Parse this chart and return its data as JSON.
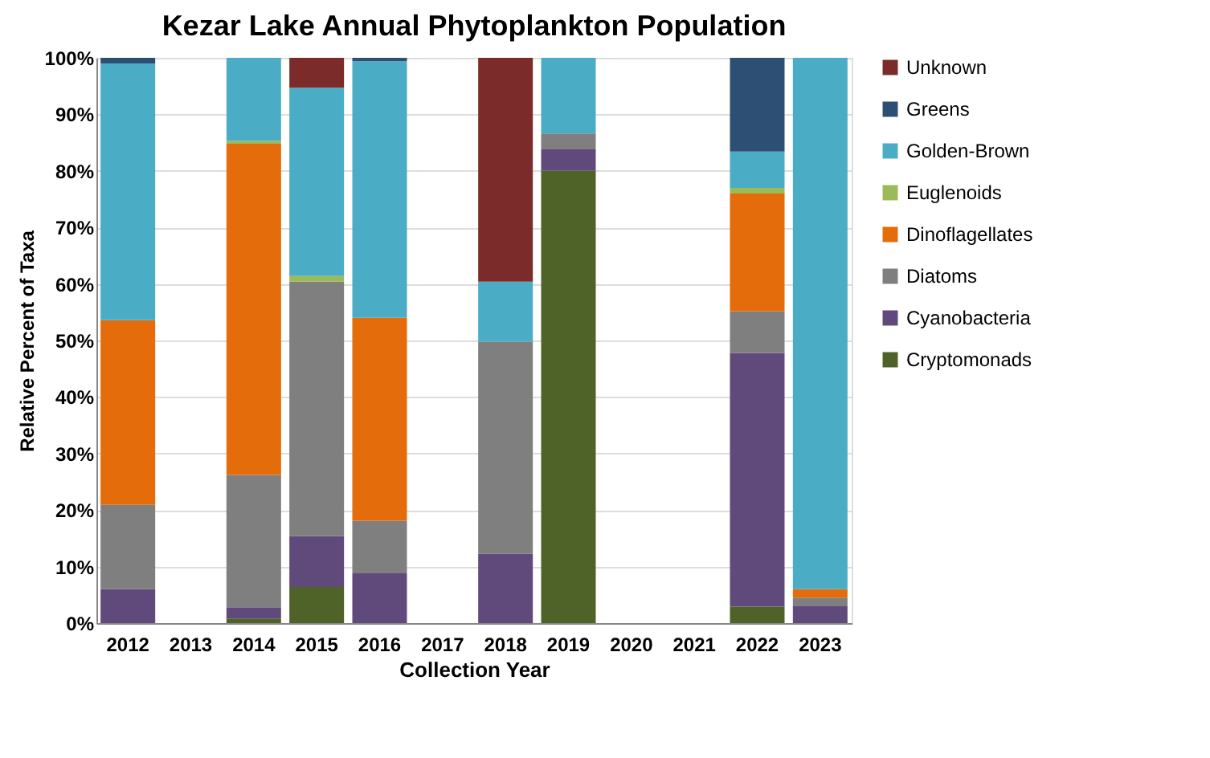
{
  "chart_data": {
    "type": "bar",
    "stacked": true,
    "title": "Kezar Lake Annual Phytoplankton Population",
    "xlabel": "Collection Year",
    "ylabel": "Relative Percent of Taxa",
    "categories": [
      "2012",
      "2013",
      "2014",
      "2015",
      "2016",
      "2017",
      "2018",
      "2019",
      "2020",
      "2021",
      "2022",
      "2023"
    ],
    "series": [
      {
        "name": "Cryptomonads",
        "color": "#4f6228",
        "values": [
          null,
          null,
          0.8,
          6.4,
          null,
          null,
          null,
          80.0,
          null,
          null,
          2.9,
          null
        ]
      },
      {
        "name": "Cyanobacteria",
        "color": "#604a7b",
        "values": [
          6.0,
          null,
          2.0,
          9.0,
          8.8,
          null,
          12.3,
          3.8,
          null,
          null,
          44.9,
          3.1
        ]
      },
      {
        "name": "Diatoms",
        "color": "#7f7f7f",
        "values": [
          14.9,
          null,
          23.4,
          45.0,
          9.3,
          null,
          37.5,
          2.8,
          null,
          null,
          7.4,
          1.4
        ]
      },
      {
        "name": "Dinoflagellates",
        "color": "#e46c0a",
        "values": [
          32.7,
          null,
          58.6,
          null,
          35.9,
          null,
          null,
          null,
          null,
          null,
          20.8,
          1.5
        ]
      },
      {
        "name": "Euglenoids",
        "color": "#9bbb59",
        "values": [
          null,
          null,
          0.5,
          1.0,
          null,
          null,
          null,
          null,
          null,
          null,
          1.0,
          null
        ]
      },
      {
        "name": "Golden-Brown",
        "color": "#4bacc6",
        "values": [
          45.4,
          null,
          14.7,
          33.3,
          45.4,
          null,
          10.6,
          13.4,
          null,
          null,
          6.4,
          94.0
        ]
      },
      {
        "name": "Greens",
        "color": "#2e4f74",
        "values": [
          1.0,
          null,
          null,
          null,
          0.6,
          null,
          null,
          null,
          null,
          null,
          16.6,
          null
        ]
      },
      {
        "name": "Unknown",
        "color": "#7b2c2a",
        "values": [
          null,
          null,
          null,
          5.3,
          null,
          null,
          39.6,
          null,
          null,
          null,
          null,
          null
        ]
      }
    ],
    "ylim": [
      0,
      100
    ],
    "yticks": [
      {
        "value": 0,
        "label": "0%"
      },
      {
        "value": 10,
        "label": "10%"
      },
      {
        "value": 20,
        "label": "20%"
      },
      {
        "value": 30,
        "label": "30%"
      },
      {
        "value": 40,
        "label": "40%"
      },
      {
        "value": 50,
        "label": "50%"
      },
      {
        "value": 60,
        "label": "60%"
      },
      {
        "value": 70,
        "label": "70%"
      },
      {
        "value": 80,
        "label": "80%"
      },
      {
        "value": 90,
        "label": "90%"
      },
      {
        "value": 100,
        "label": "100%"
      }
    ],
    "grid": "y",
    "legend": "right"
  }
}
